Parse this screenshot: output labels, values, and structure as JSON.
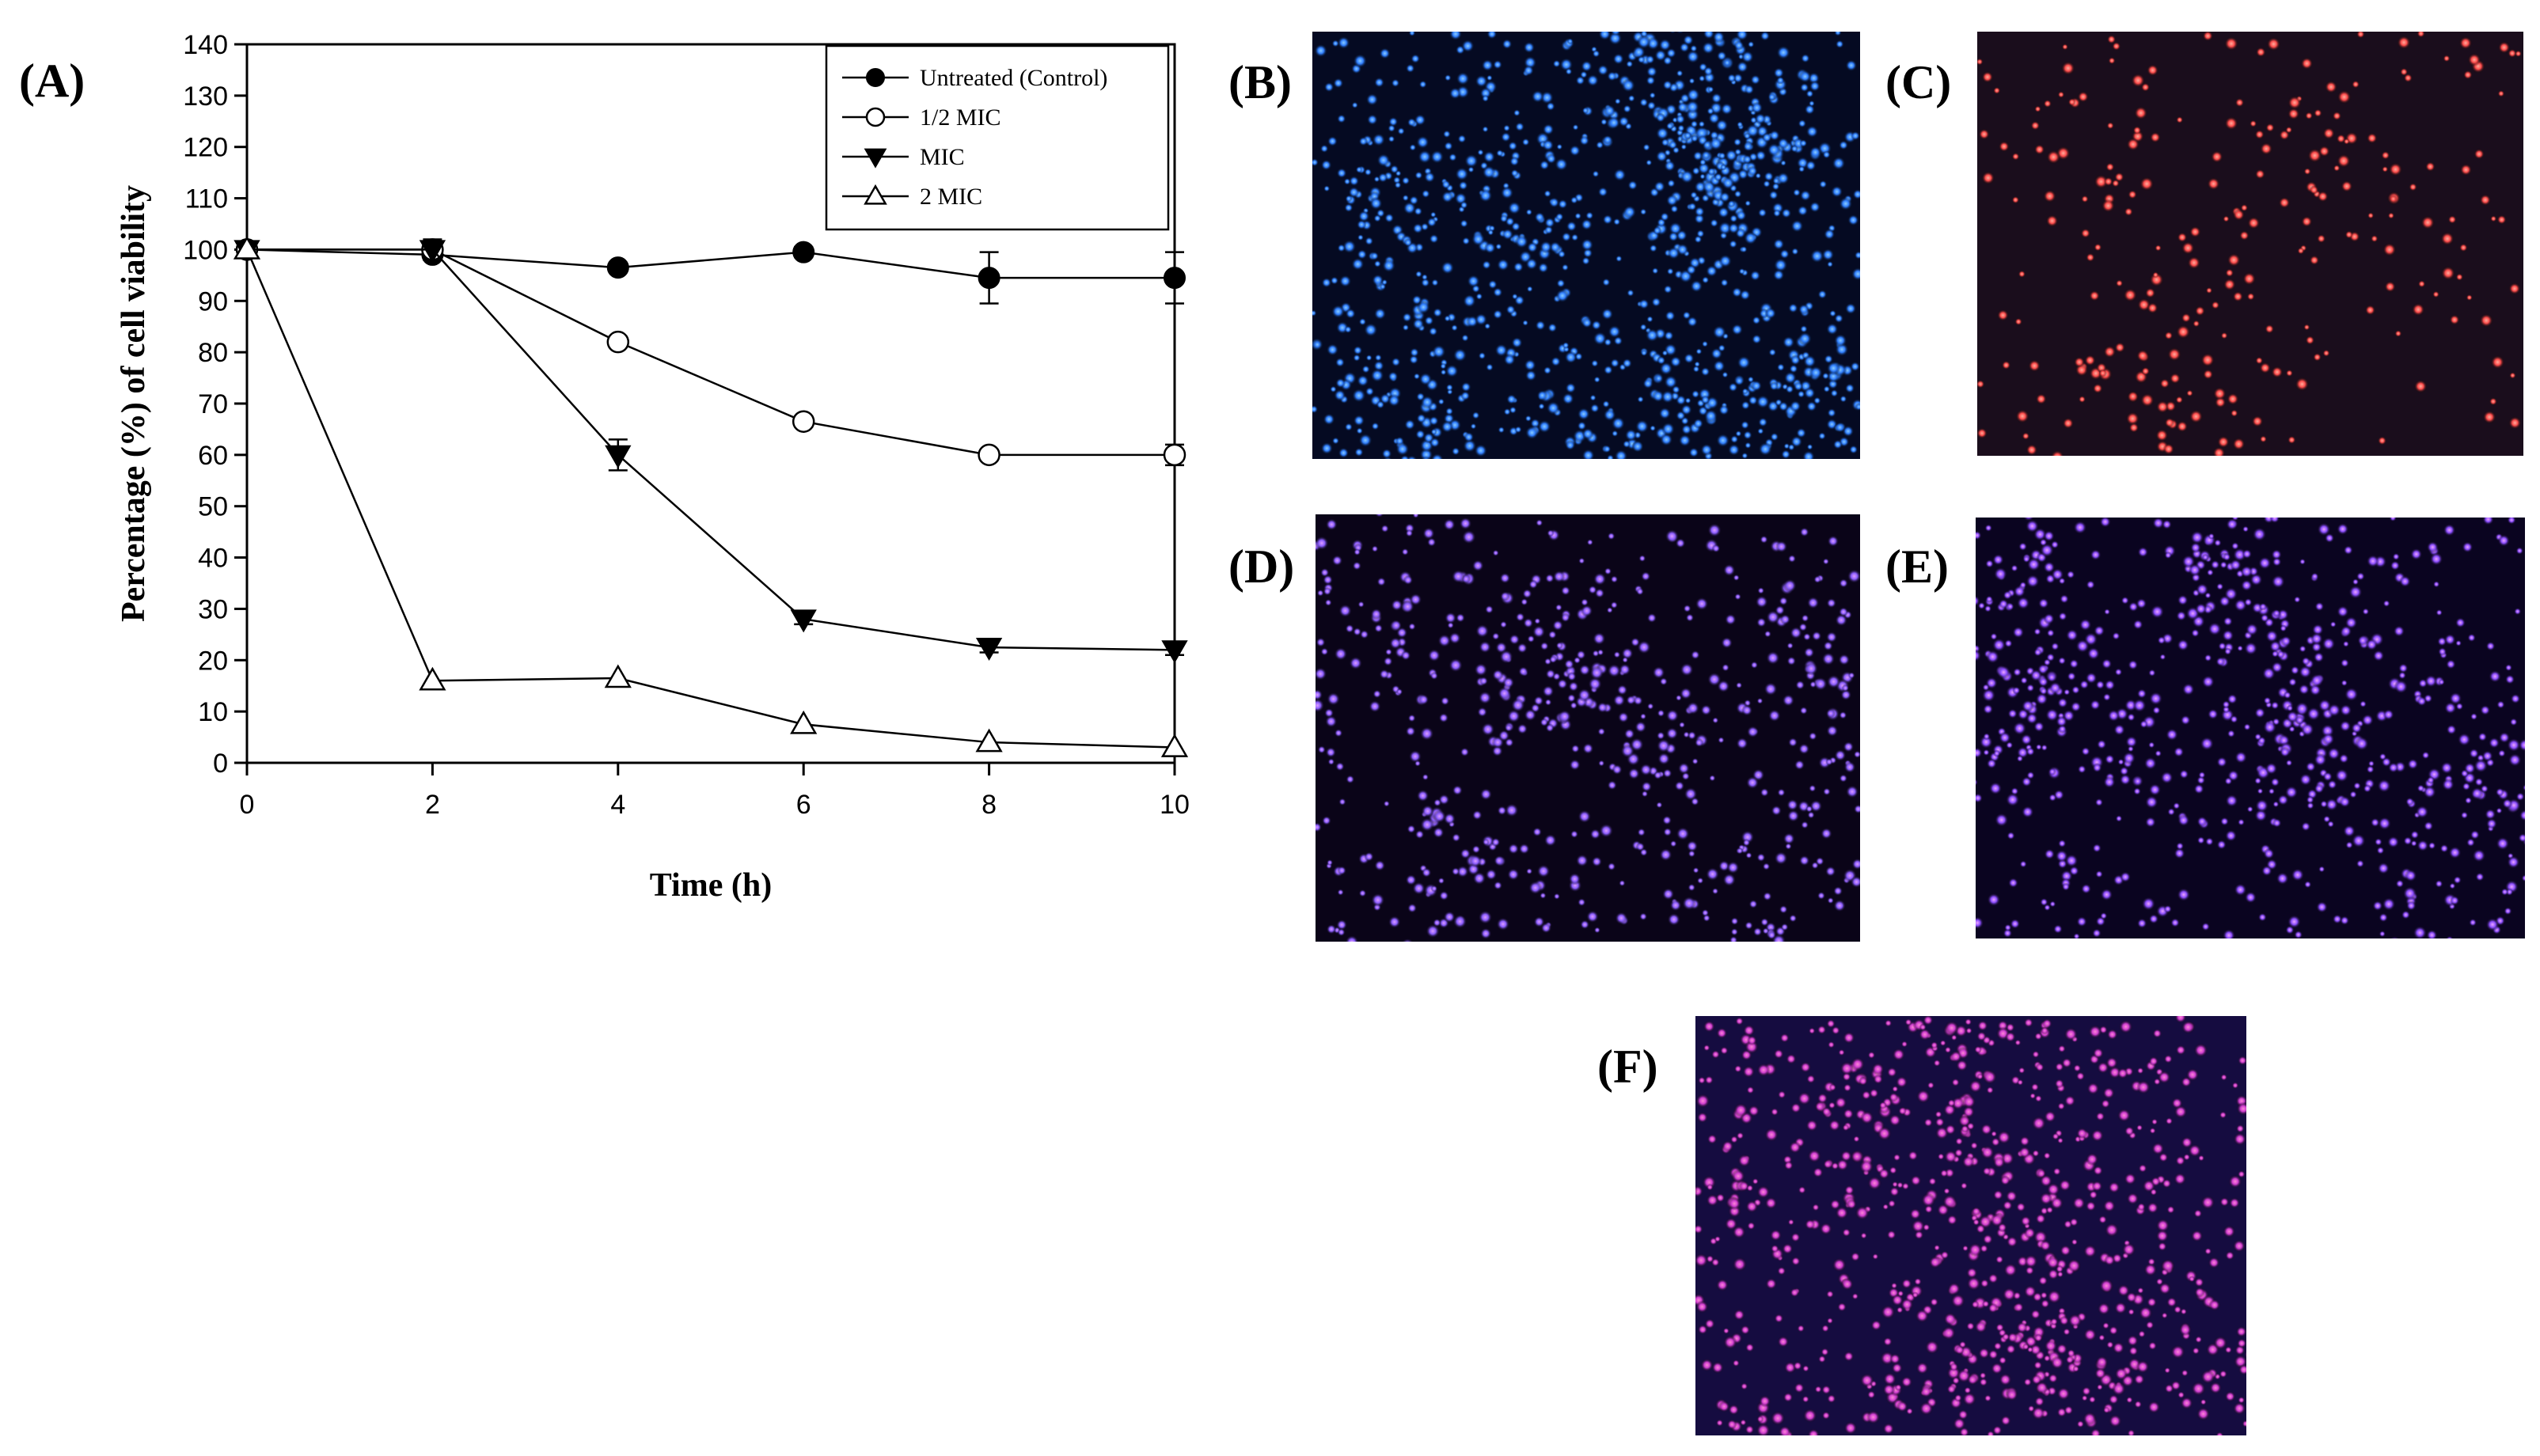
{
  "panels": {
    "a": "(A)",
    "b": "(B)",
    "c": "(C)",
    "d": "(D)",
    "e": "(E)",
    "f": "(F)"
  },
  "chart_data": {
    "type": "line",
    "xlabel": "Time (h)",
    "ylabel": "Percentage (%) of cell viability",
    "x": [
      0,
      2,
      4,
      6,
      8,
      10
    ],
    "xticks": [
      "0",
      "2",
      "4",
      "6",
      "8",
      "10"
    ],
    "yticks": [
      "0",
      "10",
      "20",
      "30",
      "40",
      "50",
      "60",
      "70",
      "80",
      "90",
      "100",
      "110",
      "120",
      "130",
      "140"
    ],
    "xlim": [
      0,
      10
    ],
    "ylim": [
      0,
      140
    ],
    "grid": false,
    "legend_position": "top-right",
    "series": [
      {
        "name": "Untreated (Control)",
        "marker": "filled-circle",
        "values": [
          100,
          99,
          96.5,
          99.5,
          94.5,
          94.5
        ],
        "errors": [
          0,
          1,
          0,
          1,
          5,
          5
        ]
      },
      {
        "name": "1/2 MIC",
        "marker": "open-circle",
        "values": [
          100,
          100,
          82,
          66.5,
          60,
          60
        ],
        "errors": [
          0,
          0,
          1,
          1,
          1,
          2
        ]
      },
      {
        "name": "MIC",
        "marker": "filled-triangle-down",
        "values": [
          100,
          100,
          60,
          28,
          22.5,
          22
        ],
        "errors": [
          0,
          2,
          3,
          1,
          1,
          1
        ]
      },
      {
        "name": "2 MIC",
        "marker": "open-triangle-up",
        "values": [
          100,
          16,
          16.5,
          7.5,
          4,
          3
        ],
        "errors": [
          0,
          0,
          0,
          0,
          0,
          0
        ]
      }
    ]
  },
  "images": [
    {
      "panel": "B",
      "background": "#050a22",
      "dot_color": "#2e7dff",
      "glow_color": "#8fd0ff",
      "dots": 1100
    },
    {
      "panel": "C",
      "background": "#1a0d1c",
      "dot_color": "#ff4a4a",
      "glow_color": "#ffb0a0",
      "dots": 260
    },
    {
      "panel": "D",
      "background": "#0a0418",
      "dot_color": "#8a5cff",
      "glow_color": "#e0a0ff",
      "dots": 620
    },
    {
      "panel": "E",
      "background": "#0a0420",
      "dot_color": "#8a4cff",
      "glow_color": "#f0a8ff",
      "dots": 760
    },
    {
      "panel": "F",
      "background": "#150c40",
      "dot_color": "#d03cd0",
      "glow_color": "#ff8ad8",
      "dots": 900
    }
  ]
}
